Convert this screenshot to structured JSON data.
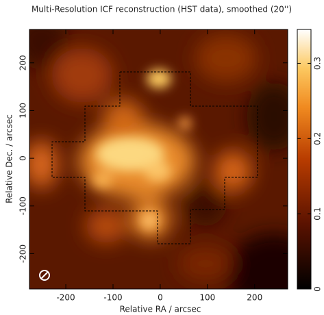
{
  "chart_data": {
    "type": "image",
    "title": "Multi-Resolution ICF reconstruction (HST data), smoothed (20'')",
    "x_label": "Relative RA / arcsec",
    "y_label": "Relative Dec. / arcsec",
    "xlim": [
      -277,
      270
    ],
    "xticks": [
      -200,
      -100,
      0,
      100,
      200
    ],
    "ylim": [
      -274,
      270
    ],
    "yticks": [
      -200,
      -100,
      0,
      100,
      200
    ],
    "clim": [
      0,
      0.345
    ],
    "cticks": [
      0,
      0.1,
      0.2,
      0.3
    ]
  }
}
